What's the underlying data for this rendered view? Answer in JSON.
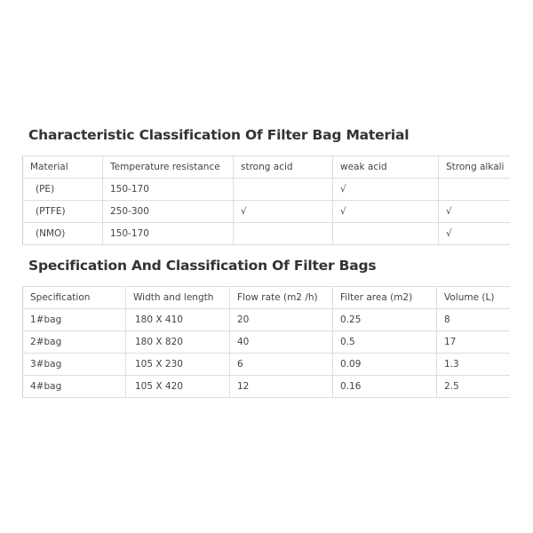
{
  "material": {
    "title": "Characteristic Classification Of Filter Bag Material",
    "header": [
      "Material",
      "Temperature resistance",
      "strong acid",
      "weak acid",
      "Strong alkali"
    ],
    "rows": [
      [
        "(PE)",
        "150-170",
        null,
        "√",
        null
      ],
      [
        "(PTFE)",
        "250-300",
        "√",
        "√",
        "√"
      ],
      [
        "(NMO)",
        "150-170",
        null,
        null,
        "√"
      ]
    ]
  },
  "specification": {
    "title": "Specification And Classification Of Filter Bags",
    "header": [
      "Specification",
      "Width and length",
      "Flow rate (m2 /h)",
      "Filter area (m2)",
      "Volume (L)"
    ],
    "rows": [
      [
        "1#bag",
        "180 X 410",
        "20",
        "0.25",
        "8"
      ],
      [
        "2#bag",
        "180 X 820",
        "40",
        "0.5",
        "17"
      ],
      [
        "3#bag",
        "105 X 230",
        "6",
        "0.09",
        "1.3"
      ],
      [
        "4#bag",
        "105 X 420",
        "12",
        "0.16",
        "2.5"
      ]
    ]
  }
}
